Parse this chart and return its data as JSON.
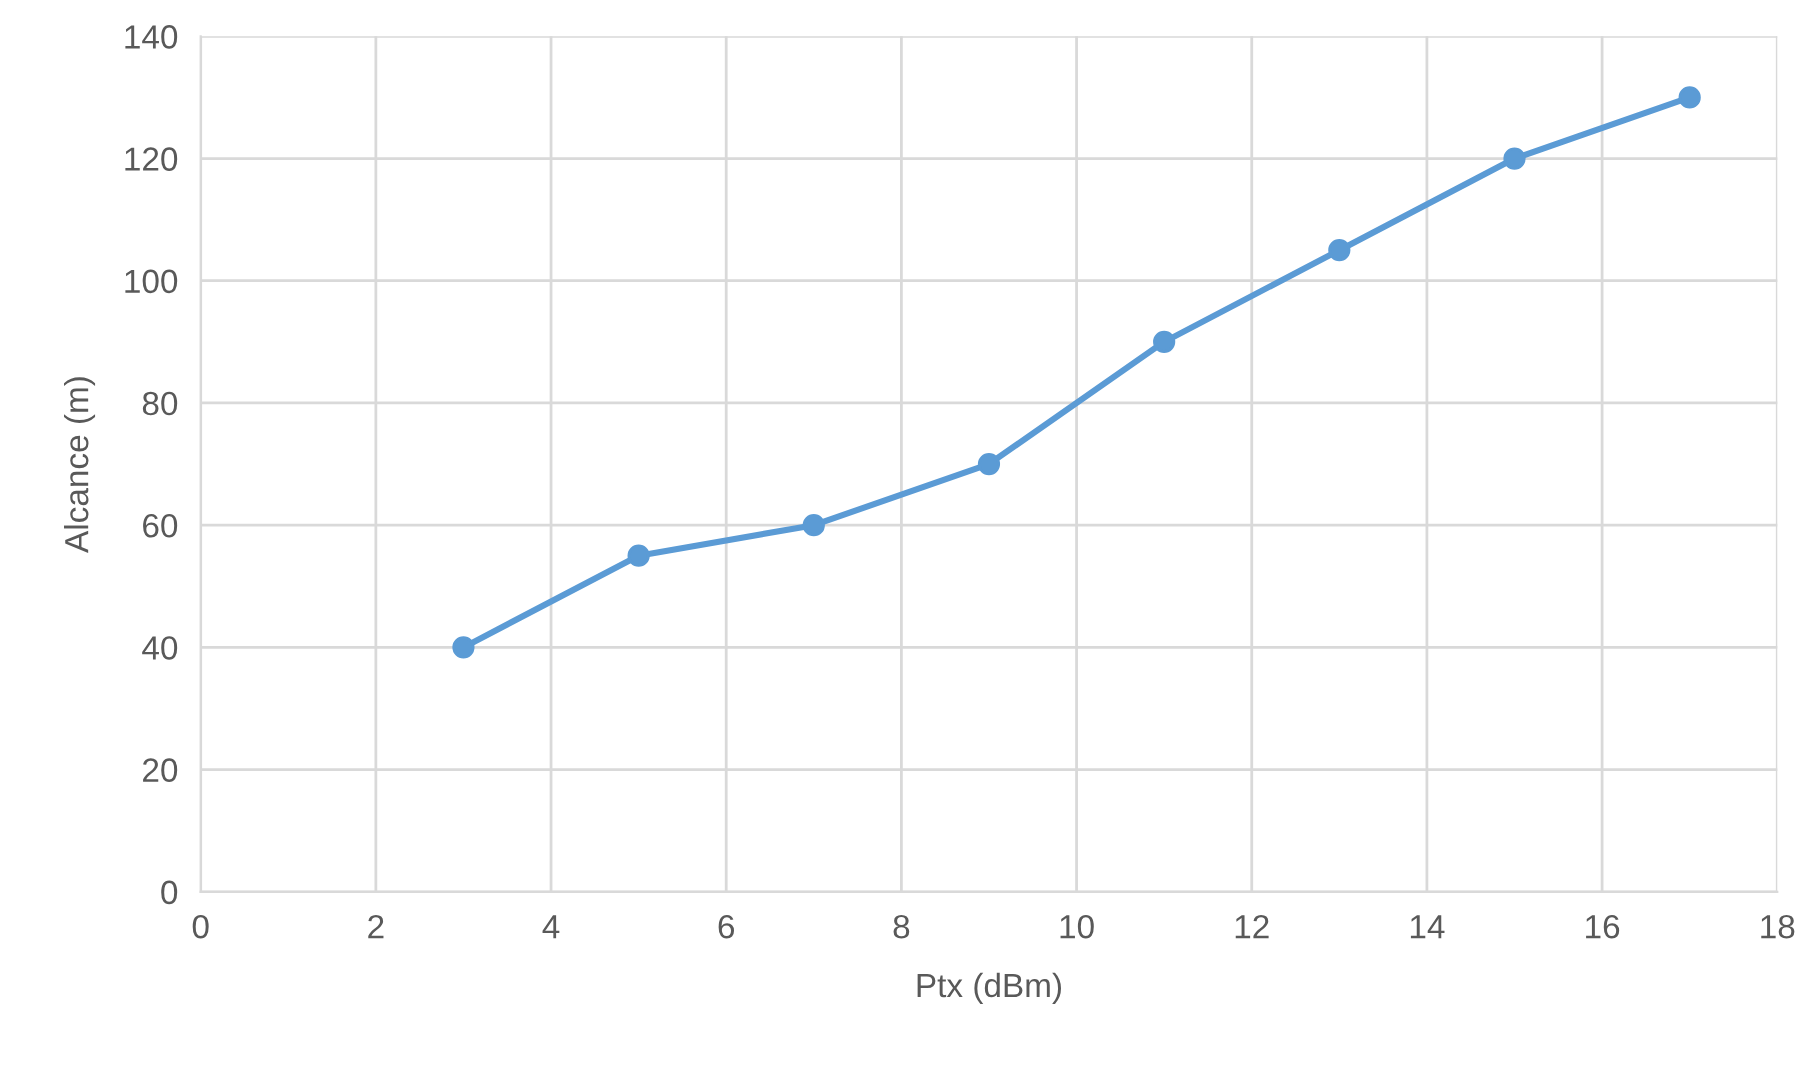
{
  "chart_data": {
    "type": "line",
    "xlabel": "Ptx (dBm)",
    "ylabel": "Alcance (m)",
    "x": [
      3,
      5,
      7,
      9,
      11,
      13,
      15,
      17
    ],
    "series": [
      {
        "color": "#5b9bd5",
        "values": [
          40,
          55,
          60,
          70,
          90,
          105,
          120,
          130
        ]
      }
    ],
    "xlim": [
      0,
      18
    ],
    "xticks": [
      0,
      2,
      4,
      6,
      8,
      10,
      12,
      14,
      16,
      18
    ],
    "ylim": [
      0,
      140
    ],
    "yticks": [
      0,
      20,
      40,
      60,
      80,
      100,
      120,
      140
    ],
    "grid": true,
    "marker": "circle",
    "line_style": "solid"
  }
}
